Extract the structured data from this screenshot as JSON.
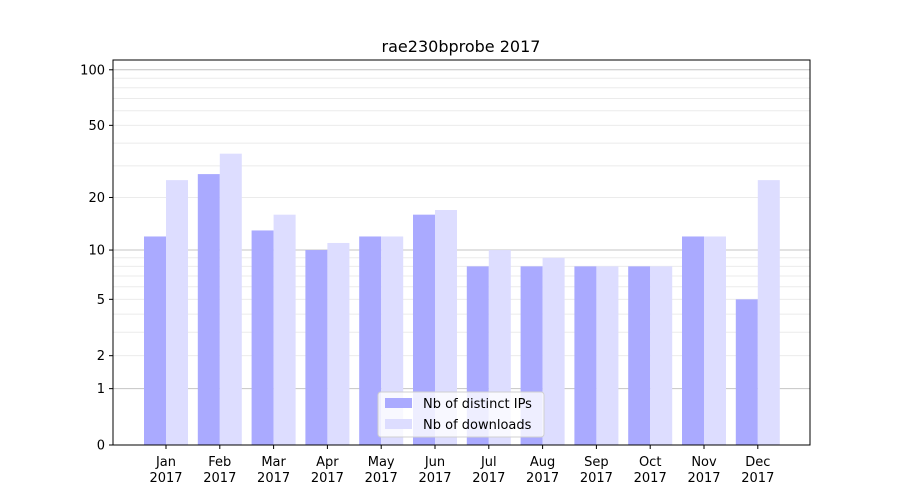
{
  "chart_data": {
    "type": "bar",
    "title": "rae230bprobe 2017",
    "xlabel": "",
    "ylabel": "",
    "yscale": "log(v+1)",
    "ylim": [
      0,
      110
    ],
    "yticks": [
      0,
      1,
      2,
      5,
      10,
      20,
      50,
      100
    ],
    "grid": true,
    "legend_position": "bottom-center",
    "categories": [
      "Jan\n2017",
      "Feb\n2017",
      "Mar\n2017",
      "Apr\n2017",
      "May\n2017",
      "Jun\n2017",
      "Jul\n2017",
      "Aug\n2017",
      "Sep\n2017",
      "Oct\n2017",
      "Nov\n2017",
      "Dec\n2017"
    ],
    "series": [
      {
        "name": "Nb of distinct IPs",
        "color": "#aaaaff",
        "values": [
          12,
          27,
          13,
          10,
          12,
          16,
          8,
          8,
          8,
          8,
          12,
          5
        ]
      },
      {
        "name": "Nb of downloads",
        "color": "#ddddff",
        "values": [
          25,
          35,
          16,
          11,
          12,
          17,
          10,
          9,
          8,
          8,
          12,
          25
        ]
      }
    ]
  }
}
